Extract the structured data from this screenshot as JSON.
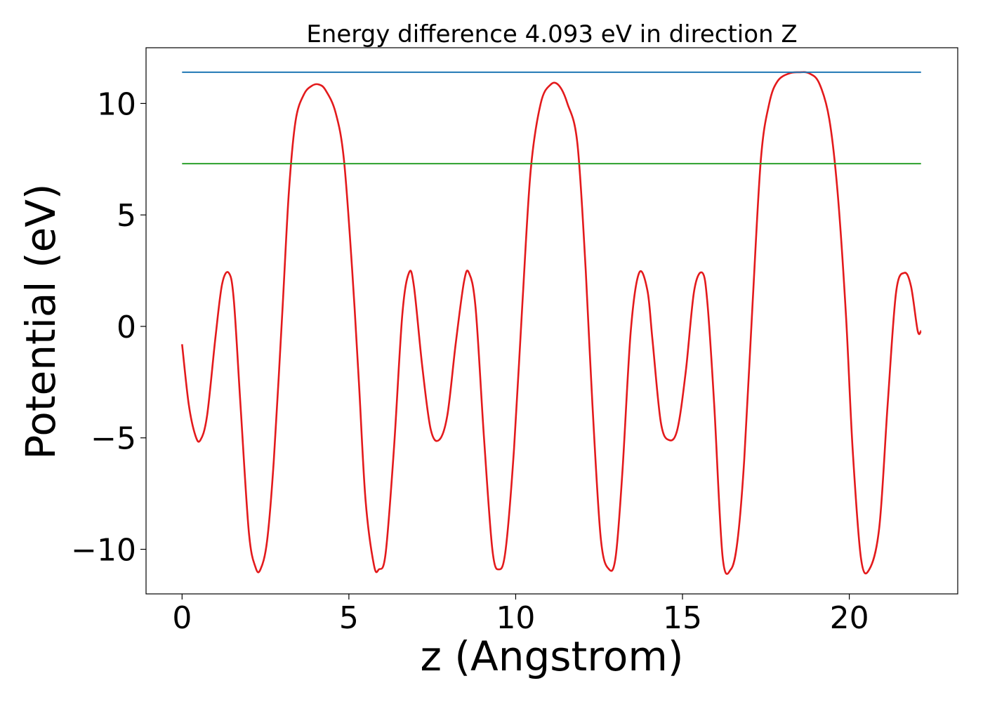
{
  "chart_data": {
    "type": "line",
    "title": "Energy difference 4.093 eV in direction Z",
    "xlabel": "z (Angstrom)",
    "ylabel": "Potential (eV)",
    "xlim": [
      -1.08,
      23.25
    ],
    "ylim": [
      -12.0,
      12.5
    ],
    "x_ticks": [
      0,
      5,
      10,
      15,
      20
    ],
    "x_tick_labels": [
      "0",
      "5",
      "10",
      "15",
      "20"
    ],
    "y_ticks": [
      -10,
      -5,
      0,
      5,
      10
    ],
    "y_tick_labels": [
      "−10",
      "−5",
      "0",
      "5",
      "10"
    ],
    "grid": false,
    "legend": "none",
    "colors": {
      "potential": "#e31a1c",
      "upper_level": "#1f77b4",
      "lower_level": "#2ca02c"
    },
    "series": [
      {
        "x": [
          0.0,
          0.2,
          0.4,
          0.55,
          0.75,
          1.0,
          1.2,
          1.4,
          1.55,
          1.75,
          2.0,
          2.2,
          2.35,
          2.55,
          2.75,
          3.0,
          3.2,
          3.4,
          3.65,
          3.9,
          4.1,
          4.3,
          4.6,
          4.85,
          5.1,
          5.3,
          5.5,
          5.75,
          5.9,
          6.1,
          6.35,
          6.6,
          6.8,
          6.95,
          7.2,
          7.45,
          7.7,
          7.95,
          8.2,
          8.45,
          8.6,
          8.8,
          9.05,
          9.3,
          9.5,
          9.7,
          9.95,
          10.2,
          10.45,
          10.75,
          11.05,
          11.3,
          11.55,
          11.85,
          12.1,
          12.3,
          12.55,
          12.8,
          13.0,
          13.2,
          13.45,
          13.7,
          13.95,
          14.1,
          14.35,
          14.6,
          14.85,
          15.1,
          15.35,
          15.6,
          15.75,
          15.95,
          16.2,
          16.45,
          16.65,
          16.85,
          17.1,
          17.35,
          17.6,
          17.85,
          18.2,
          18.5,
          18.8,
          19.1,
          19.4,
          19.65,
          19.9,
          20.1,
          20.35,
          20.6,
          20.9,
          21.15,
          21.4,
          21.65,
          21.85,
          22.05,
          22.15
        ],
        "values": [
          -0.8,
          -3.5,
          -4.9,
          -5.1,
          -4.0,
          -0.5,
          1.9,
          2.4,
          1.2,
          -3.5,
          -9.2,
          -10.8,
          -10.9,
          -9.6,
          -6.0,
          0.5,
          6.0,
          9.2,
          10.4,
          10.8,
          10.85,
          10.6,
          9.6,
          7.5,
          2.5,
          -2.5,
          -7.8,
          -10.7,
          -10.9,
          -10.2,
          -5.5,
          0.5,
          2.4,
          1.8,
          -1.8,
          -4.6,
          -5.1,
          -4.0,
          -0.8,
          2.0,
          2.4,
          0.8,
          -5.0,
          -10.0,
          -10.9,
          -10.0,
          -5.5,
          1.0,
          7.0,
          10.0,
          10.85,
          10.8,
          10.0,
          8.2,
          2.5,
          -3.5,
          -9.5,
          -10.9,
          -10.3,
          -6.5,
          -0.2,
          2.4,
          1.6,
          -0.6,
          -4.3,
          -5.1,
          -4.6,
          -2.0,
          1.6,
          2.4,
          1.0,
          -3.5,
          -10.3,
          -10.9,
          -9.6,
          -6.0,
          1.0,
          7.5,
          10.0,
          11.0,
          11.35,
          11.4,
          11.35,
          10.9,
          9.3,
          6.0,
          0.5,
          -5.5,
          -10.4,
          -10.9,
          -9.0,
          -3.5,
          1.5,
          2.4,
          1.8,
          -0.2,
          -0.2
        ]
      },
      {
        "x": [
          0.0,
          22.15
        ],
        "values": [
          11.4,
          11.4
        ]
      },
      {
        "x": [
          0.0,
          22.15
        ],
        "values": [
          7.3,
          7.3
        ]
      }
    ]
  }
}
